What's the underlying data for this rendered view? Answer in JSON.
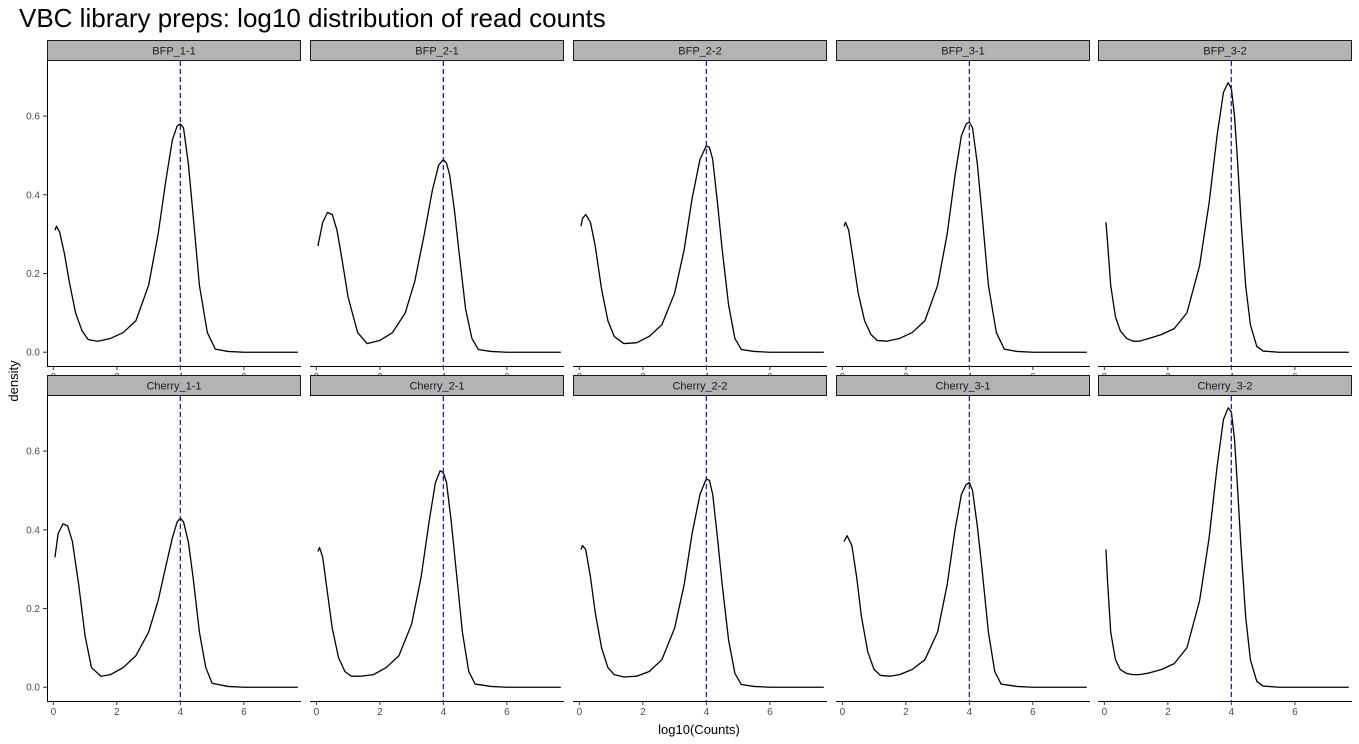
{
  "chart_data": {
    "type": "line",
    "title": "VBC library preps: log10 distribution of read counts",
    "xlabel": "log10(Counts)",
    "ylabel": "density",
    "layout": {
      "rows": 2,
      "cols": 5
    },
    "xlim": [
      -0.2,
      7.8
    ],
    "ylim": [
      -0.035,
      0.74
    ],
    "xticks": [
      0,
      2,
      4,
      6
    ],
    "yticks": [
      0.0,
      0.2,
      0.4,
      0.6
    ],
    "xtick_labels": [
      "0",
      "2",
      "4",
      "6"
    ],
    "ytick_labels": [
      "0.0",
      "0.2",
      "0.4",
      "0.6"
    ],
    "grid": false,
    "reference_line": {
      "x": 4,
      "style": "dashed",
      "color": "#1a1adb"
    },
    "line_color": "#000000",
    "strip_color": "#b3b3b3",
    "panels": [
      {
        "label": "BFP_1-1",
        "x": [
          0.05,
          0.1,
          0.2,
          0.35,
          0.5,
          0.7,
          0.9,
          1.1,
          1.4,
          1.8,
          2.2,
          2.6,
          3.0,
          3.3,
          3.55,
          3.75,
          3.9,
          4.0,
          4.1,
          4.25,
          4.4,
          4.6,
          4.85,
          5.1,
          5.5,
          6.0,
          7.0,
          7.7
        ],
        "y": [
          0.31,
          0.32,
          0.305,
          0.25,
          0.18,
          0.1,
          0.055,
          0.032,
          0.028,
          0.035,
          0.05,
          0.08,
          0.17,
          0.3,
          0.44,
          0.54,
          0.575,
          0.58,
          0.57,
          0.48,
          0.35,
          0.17,
          0.05,
          0.008,
          0.002,
          0.0,
          0.0,
          0.0
        ]
      },
      {
        "label": "BFP_2-1",
        "x": [
          0.05,
          0.2,
          0.35,
          0.5,
          0.65,
          0.8,
          1.0,
          1.3,
          1.6,
          2.0,
          2.4,
          2.8,
          3.1,
          3.4,
          3.65,
          3.85,
          4.0,
          4.1,
          4.2,
          4.35,
          4.5,
          4.7,
          4.9,
          5.1,
          5.5,
          6.0,
          7.0,
          7.7
        ],
        "y": [
          0.27,
          0.33,
          0.355,
          0.35,
          0.31,
          0.24,
          0.14,
          0.05,
          0.022,
          0.03,
          0.05,
          0.1,
          0.18,
          0.3,
          0.41,
          0.475,
          0.49,
          0.48,
          0.45,
          0.36,
          0.25,
          0.11,
          0.035,
          0.007,
          0.002,
          0.0,
          0.0,
          0.0
        ]
      },
      {
        "label": "BFP_2-2",
        "x": [
          0.05,
          0.1,
          0.2,
          0.35,
          0.5,
          0.7,
          0.9,
          1.1,
          1.4,
          1.8,
          2.2,
          2.6,
          3.0,
          3.3,
          3.55,
          3.8,
          4.0,
          4.1,
          4.2,
          4.35,
          4.5,
          4.7,
          4.9,
          5.1,
          5.5,
          6.0,
          7.0,
          7.7
        ],
        "y": [
          0.32,
          0.34,
          0.35,
          0.33,
          0.27,
          0.16,
          0.08,
          0.04,
          0.022,
          0.024,
          0.04,
          0.07,
          0.15,
          0.26,
          0.39,
          0.49,
          0.525,
          0.52,
          0.49,
          0.38,
          0.26,
          0.12,
          0.035,
          0.007,
          0.002,
          0.0,
          0.0,
          0.0
        ]
      },
      {
        "label": "BFP_3-1",
        "x": [
          0.05,
          0.1,
          0.2,
          0.35,
          0.5,
          0.7,
          0.9,
          1.1,
          1.4,
          1.8,
          2.2,
          2.6,
          3.0,
          3.3,
          3.55,
          3.75,
          3.9,
          4.0,
          4.1,
          4.25,
          4.4,
          4.6,
          4.85,
          5.1,
          5.5,
          6.0,
          7.0,
          7.7
        ],
        "y": [
          0.32,
          0.33,
          0.31,
          0.23,
          0.15,
          0.08,
          0.045,
          0.03,
          0.028,
          0.035,
          0.05,
          0.08,
          0.17,
          0.3,
          0.45,
          0.55,
          0.58,
          0.585,
          0.57,
          0.48,
          0.35,
          0.17,
          0.05,
          0.008,
          0.002,
          0.0,
          0.0,
          0.0
        ]
      },
      {
        "label": "BFP_3-2",
        "x": [
          0.05,
          0.1,
          0.2,
          0.35,
          0.5,
          0.7,
          0.9,
          1.1,
          1.4,
          1.8,
          2.2,
          2.6,
          3.0,
          3.3,
          3.55,
          3.75,
          3.9,
          4.0,
          4.1,
          4.2,
          4.3,
          4.45,
          4.6,
          4.8,
          5.0,
          5.5,
          6.0,
          7.0,
          7.7
        ],
        "y": [
          0.33,
          0.28,
          0.17,
          0.09,
          0.055,
          0.035,
          0.028,
          0.028,
          0.035,
          0.045,
          0.06,
          0.1,
          0.22,
          0.38,
          0.55,
          0.66,
          0.685,
          0.67,
          0.6,
          0.48,
          0.34,
          0.17,
          0.07,
          0.015,
          0.003,
          0.0,
          0.0,
          0.0,
          0.0
        ]
      },
      {
        "label": "Cherry_1-1",
        "x": [
          0.05,
          0.15,
          0.3,
          0.45,
          0.6,
          0.8,
          1.0,
          1.2,
          1.5,
          1.8,
          2.2,
          2.6,
          3.0,
          3.3,
          3.55,
          3.75,
          3.9,
          4.0,
          4.1,
          4.25,
          4.4,
          4.6,
          4.8,
          5.0,
          5.5,
          6.0,
          7.0,
          7.7
        ],
        "y": [
          0.33,
          0.39,
          0.415,
          0.41,
          0.37,
          0.26,
          0.13,
          0.05,
          0.028,
          0.032,
          0.05,
          0.08,
          0.14,
          0.22,
          0.31,
          0.38,
          0.42,
          0.43,
          0.42,
          0.37,
          0.28,
          0.14,
          0.05,
          0.01,
          0.002,
          0.0,
          0.0,
          0.0
        ]
      },
      {
        "label": "Cherry_2-1",
        "x": [
          0.05,
          0.1,
          0.2,
          0.35,
          0.5,
          0.7,
          0.9,
          1.1,
          1.4,
          1.8,
          2.2,
          2.6,
          3.0,
          3.3,
          3.55,
          3.75,
          3.9,
          4.0,
          4.1,
          4.25,
          4.4,
          4.6,
          4.8,
          5.0,
          5.5,
          6.0,
          7.0,
          7.7
        ],
        "y": [
          0.345,
          0.355,
          0.33,
          0.24,
          0.15,
          0.075,
          0.04,
          0.028,
          0.028,
          0.032,
          0.05,
          0.08,
          0.16,
          0.28,
          0.42,
          0.52,
          0.55,
          0.545,
          0.52,
          0.42,
          0.3,
          0.14,
          0.04,
          0.008,
          0.002,
          0.0,
          0.0,
          0.0
        ]
      },
      {
        "label": "Cherry_2-2",
        "x": [
          0.05,
          0.1,
          0.2,
          0.35,
          0.5,
          0.7,
          0.9,
          1.1,
          1.4,
          1.8,
          2.2,
          2.6,
          3.0,
          3.3,
          3.55,
          3.8,
          4.0,
          4.1,
          4.2,
          4.35,
          4.5,
          4.7,
          4.9,
          5.1,
          5.5,
          6.0,
          7.0,
          7.7
        ],
        "y": [
          0.35,
          0.36,
          0.35,
          0.28,
          0.19,
          0.1,
          0.05,
          0.032,
          0.026,
          0.028,
          0.04,
          0.07,
          0.15,
          0.26,
          0.39,
          0.49,
          0.53,
          0.525,
          0.49,
          0.38,
          0.26,
          0.12,
          0.035,
          0.007,
          0.002,
          0.0,
          0.0,
          0.0
        ]
      },
      {
        "label": "Cherry_3-1",
        "x": [
          0.05,
          0.15,
          0.3,
          0.45,
          0.6,
          0.8,
          1.0,
          1.2,
          1.5,
          1.8,
          2.2,
          2.6,
          3.0,
          3.3,
          3.55,
          3.75,
          3.9,
          4.0,
          4.1,
          4.25,
          4.4,
          4.6,
          4.8,
          5.0,
          5.5,
          6.0,
          7.0,
          7.7
        ],
        "y": [
          0.37,
          0.385,
          0.36,
          0.28,
          0.18,
          0.09,
          0.045,
          0.03,
          0.028,
          0.032,
          0.045,
          0.07,
          0.14,
          0.26,
          0.4,
          0.49,
          0.515,
          0.52,
          0.5,
          0.41,
          0.3,
          0.14,
          0.04,
          0.008,
          0.002,
          0.0,
          0.0,
          0.0
        ]
      },
      {
        "label": "Cherry_3-2",
        "x": [
          0.05,
          0.1,
          0.2,
          0.35,
          0.5,
          0.7,
          0.9,
          1.1,
          1.4,
          1.8,
          2.2,
          2.6,
          3.0,
          3.3,
          3.55,
          3.75,
          3.9,
          4.0,
          4.1,
          4.2,
          4.3,
          4.45,
          4.6,
          4.8,
          5.0,
          5.5,
          6.0,
          7.0,
          7.7
        ],
        "y": [
          0.35,
          0.27,
          0.14,
          0.07,
          0.045,
          0.035,
          0.032,
          0.032,
          0.036,
          0.045,
          0.06,
          0.1,
          0.22,
          0.38,
          0.56,
          0.68,
          0.71,
          0.7,
          0.63,
          0.5,
          0.36,
          0.18,
          0.07,
          0.015,
          0.003,
          0.0,
          0.0,
          0.0,
          0.0
        ]
      }
    ]
  }
}
